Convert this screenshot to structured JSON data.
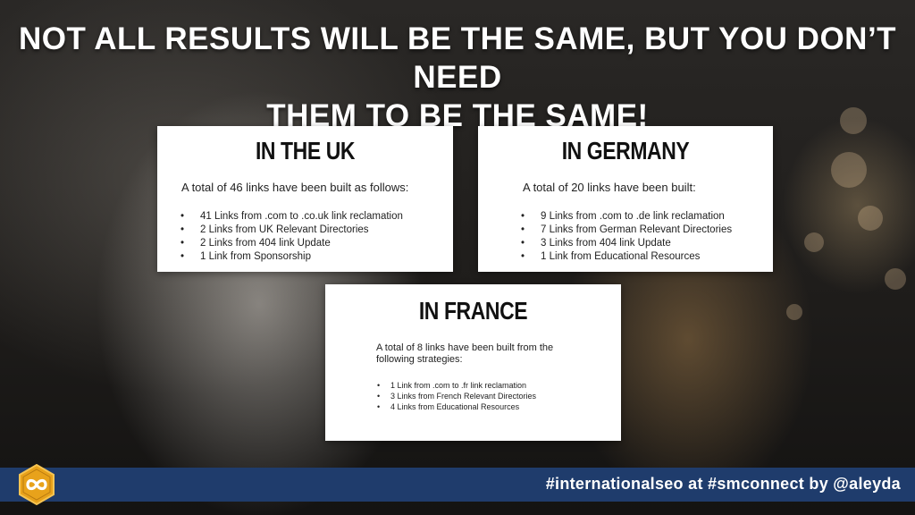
{
  "slide": {
    "title_line1": "NOT ALL RESULTS WILL BE THE SAME, BUT YOU DON’T NEED",
    "title_line2": "THEM TO BE THE SAME!"
  },
  "cards": {
    "uk": {
      "heading": "IN THE UK",
      "intro": "A total of 46 links have been built as follows:",
      "items": [
        "41 Links from .com to .co.uk link reclamation",
        "2 Links from UK Relevant Directories",
        "2 Links from 404 link Update",
        "1 Link from Sponsorship"
      ]
    },
    "germany": {
      "heading": "IN GERMANY",
      "intro": "A total of 20 links have been built:",
      "items": [
        "9 Links from .com to .de link reclamation",
        "7 Links from German Relevant Directories",
        "3 Links from 404 link Update",
        "1 Link from Educational Resources"
      ]
    },
    "france": {
      "heading": "IN FRANCE",
      "intro": "A total of 8 links have been built from the following strategies:",
      "items": [
        "1 Link from .com to .fr link reclamation",
        "3 Links from French Relevant Directories",
        "4 Links from Educational Resources"
      ]
    }
  },
  "footer": {
    "text": "#internationalseo at #smconnect by @aleyda",
    "logo_icon": "infinity-hexagon-icon",
    "bar_color": "#1f3c6c",
    "logo_color": "#e8a21b"
  }
}
